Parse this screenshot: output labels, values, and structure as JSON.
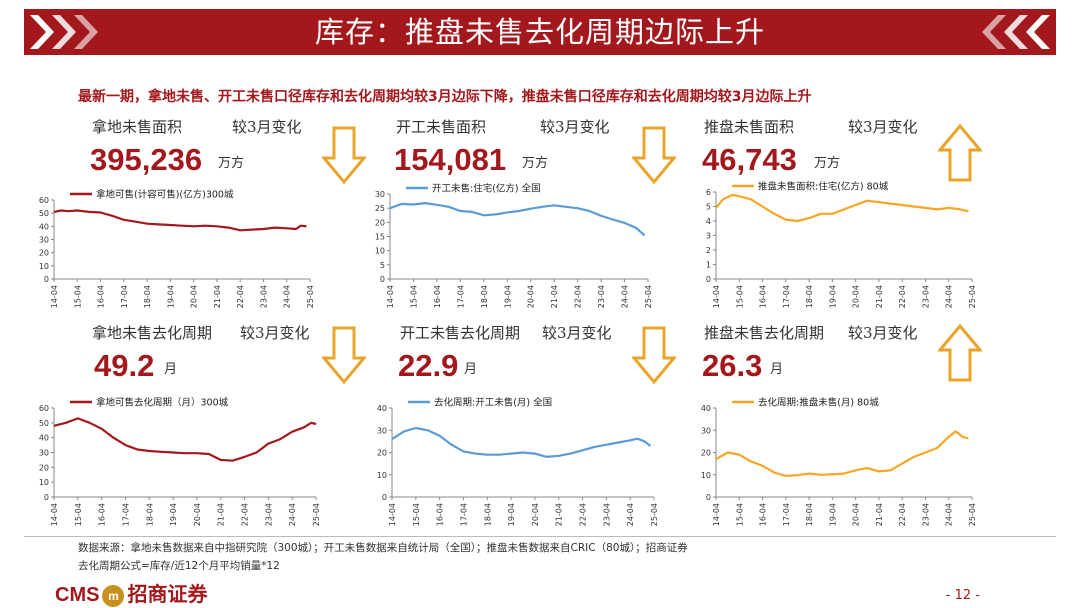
{
  "title": "库存：推盘未售去化周期边际上升",
  "headline": "最新一期，拿地未售、开工未售口径库存和去化周期均较3月边际下降，推盘未售口径库存和去化周期均较3月边际上升",
  "colors": {
    "red": "#A3181D",
    "gold": "#E8A52A",
    "blue": "#5B9BD5",
    "orange": "#F5A623"
  },
  "panels": [
    {
      "label": "拿地未售面积",
      "change_label": "较3月变化",
      "value": "395,236",
      "unit": "万方",
      "arrow": "down"
    },
    {
      "label": "开工未售面积",
      "change_label": "较3月变化",
      "value": "154,081",
      "unit": "万方",
      "arrow": "down"
    },
    {
      "label": "推盘未售面积",
      "change_label": "较3月变化",
      "value": "46,743",
      "unit": "万方",
      "arrow": "up"
    },
    {
      "label": "拿地未售去化周期",
      "change_label": "较3月变化",
      "value": "49.2",
      "unit": "月",
      "arrow": "down"
    },
    {
      "label": "开工未售去化周期",
      "change_label": "较3月变化",
      "value": "22.9",
      "unit": "月",
      "arrow": "down"
    },
    {
      "label": "推盘未售去化周期",
      "change_label": "较3月变化",
      "value": "26.3",
      "unit": "月",
      "arrow": "up"
    }
  ],
  "chart_data": [
    {
      "type": "line",
      "legend": "拿地可售(计容可售)(亿方)300城",
      "color": "#A3181D",
      "x_ticks": [
        "14-04",
        "15-04",
        "16-04",
        "17-04",
        "18-04",
        "19-04",
        "20-04",
        "21-04",
        "22-04",
        "23-04",
        "24-04",
        "25-04"
      ],
      "ylim": [
        0,
        60
      ],
      "y_ticks": [
        0,
        10,
        20,
        30,
        40,
        50,
        60
      ],
      "points": [
        [
          0,
          51
        ],
        [
          0.3,
          52
        ],
        [
          0.6,
          51.5
        ],
        [
          1,
          52
        ],
        [
          1.5,
          51
        ],
        [
          2,
          50.5
        ],
        [
          2.5,
          48
        ],
        [
          3,
          45
        ],
        [
          3.5,
          43.5
        ],
        [
          4,
          42
        ],
        [
          4.5,
          41.5
        ],
        [
          5,
          41
        ],
        [
          5.5,
          40.5
        ],
        [
          6,
          40
        ],
        [
          6.5,
          40.5
        ],
        [
          7,
          40
        ],
        [
          7.5,
          39
        ],
        [
          8,
          37
        ],
        [
          8.5,
          37.5
        ],
        [
          9,
          38
        ],
        [
          9.5,
          39
        ],
        [
          10,
          38.5
        ],
        [
          10.4,
          38
        ],
        [
          10.6,
          40.5
        ],
        [
          10.85,
          40
        ]
      ]
    },
    {
      "type": "line",
      "legend": "开工未售:住宅(亿方) 全国",
      "color": "#5B9BD5",
      "x_ticks": [
        "14-04",
        "15-04",
        "16-04",
        "17-04",
        "18-04",
        "19-04",
        "20-04",
        "21-04",
        "22-04",
        "23-04",
        "24-04",
        "25-04"
      ],
      "ylim": [
        0,
        30
      ],
      "y_ticks": [
        0,
        5,
        10,
        15,
        20,
        25,
        30
      ],
      "points": [
        [
          0,
          25
        ],
        [
          0.5,
          26.5
        ],
        [
          1,
          26.3
        ],
        [
          1.5,
          26.8
        ],
        [
          2,
          26.2
        ],
        [
          2.5,
          25.5
        ],
        [
          3,
          24
        ],
        [
          3.5,
          23.7
        ],
        [
          4,
          22.5
        ],
        [
          4.5,
          22.8
        ],
        [
          5,
          23.5
        ],
        [
          5.5,
          24
        ],
        [
          6,
          24.8
        ],
        [
          6.5,
          25.5
        ],
        [
          7,
          26
        ],
        [
          7.5,
          25.5
        ],
        [
          8,
          25
        ],
        [
          8.5,
          24
        ],
        [
          9,
          22.3
        ],
        [
          9.5,
          21
        ],
        [
          10,
          19.8
        ],
        [
          10.5,
          18
        ],
        [
          10.85,
          15.4
        ]
      ]
    },
    {
      "type": "line",
      "legend": "推盘未售面积:住宅(亿方) 80城",
      "color": "#F5A623",
      "x_ticks": [
        "14-04",
        "15-04",
        "16-04",
        "17-04",
        "18-04",
        "19-04",
        "20-04",
        "21-04",
        "22-04",
        "23-04",
        "24-04",
        "25-04"
      ],
      "ylim": [
        0,
        6
      ],
      "y_ticks": [
        0,
        1,
        2,
        3,
        4,
        5,
        6
      ],
      "points": [
        [
          0,
          4.9
        ],
        [
          0.3,
          5.5
        ],
        [
          0.7,
          5.8
        ],
        [
          1,
          5.7
        ],
        [
          1.5,
          5.5
        ],
        [
          2,
          5.0
        ],
        [
          2.5,
          4.5
        ],
        [
          3,
          4.1
        ],
        [
          3.5,
          4.0
        ],
        [
          4,
          4.2
        ],
        [
          4.5,
          4.5
        ],
        [
          5,
          4.5
        ],
        [
          5.5,
          4.8
        ],
        [
          6,
          5.1
        ],
        [
          6.5,
          5.4
        ],
        [
          7,
          5.3
        ],
        [
          7.5,
          5.2
        ],
        [
          8,
          5.1
        ],
        [
          8.5,
          5.0
        ],
        [
          9,
          4.9
        ],
        [
          9.5,
          4.8
        ],
        [
          10,
          4.9
        ],
        [
          10.5,
          4.8
        ],
        [
          10.85,
          4.67
        ]
      ]
    },
    {
      "type": "line",
      "legend": "拿地可售去化周期（月）300城",
      "color": "#A3181D",
      "x_ticks": [
        "14-04",
        "15-04",
        "16-04",
        "17-04",
        "18-04",
        "19-04",
        "20-04",
        "21-04",
        "22-04",
        "23-04",
        "24-04",
        "25-04"
      ],
      "ylim": [
        0,
        60
      ],
      "y_ticks": [
        0,
        10,
        20,
        30,
        40,
        50,
        60
      ],
      "points": [
        [
          0,
          48
        ],
        [
          0.5,
          50
        ],
        [
          1,
          53
        ],
        [
          1.5,
          50
        ],
        [
          2,
          46
        ],
        [
          2.5,
          40
        ],
        [
          3,
          35
        ],
        [
          3.5,
          32
        ],
        [
          4,
          31
        ],
        [
          4.5,
          30.5
        ],
        [
          5,
          30
        ],
        [
          5.5,
          29.5
        ],
        [
          6,
          29.5
        ],
        [
          6.5,
          29
        ],
        [
          7,
          25
        ],
        [
          7.5,
          24.5
        ],
        [
          8,
          27
        ],
        [
          8.5,
          30
        ],
        [
          9,
          36
        ],
        [
          9.5,
          39
        ],
        [
          10,
          44
        ],
        [
          10.5,
          47
        ],
        [
          10.8,
          50
        ],
        [
          11,
          49.2
        ]
      ]
    },
    {
      "type": "line",
      "legend": "去化周期:开工未售(月) 全国",
      "color": "#5B9BD5",
      "x_ticks": [
        "14-04",
        "15-04",
        "16-04",
        "17-04",
        "18-04",
        "19-04",
        "20-04",
        "21-04",
        "22-04",
        "23-04",
        "24-04",
        "25-04"
      ],
      "ylim": [
        0,
        40
      ],
      "y_ticks": [
        0,
        10,
        20,
        30,
        40
      ],
      "points": [
        [
          0,
          26
        ],
        [
          0.5,
          29.5
        ],
        [
          1,
          31
        ],
        [
          1.5,
          30
        ],
        [
          2,
          27.5
        ],
        [
          2.5,
          23.5
        ],
        [
          3,
          20.5
        ],
        [
          3.5,
          19.5
        ],
        [
          4,
          19
        ],
        [
          4.5,
          19
        ],
        [
          5,
          19.5
        ],
        [
          5.5,
          20
        ],
        [
          6,
          19.5
        ],
        [
          6.5,
          18
        ],
        [
          7,
          18.5
        ],
        [
          7.5,
          19.5
        ],
        [
          8,
          21
        ],
        [
          8.5,
          22.5
        ],
        [
          9,
          23.5
        ],
        [
          9.5,
          24.5
        ],
        [
          10,
          25.5
        ],
        [
          10.3,
          26.2
        ],
        [
          10.6,
          25
        ],
        [
          10.85,
          22.9
        ]
      ]
    },
    {
      "type": "line",
      "legend": "去化周期:推盘未售(月) 80城",
      "color": "#F5A623",
      "x_ticks": [
        "14-04",
        "15-04",
        "16-04",
        "17-04",
        "18-04",
        "19-04",
        "20-04",
        "21-04",
        "22-04",
        "23-04",
        "24-04",
        "25-04"
      ],
      "ylim": [
        0,
        40
      ],
      "y_ticks": [
        0,
        10,
        20,
        30,
        40
      ],
      "points": [
        [
          0,
          17
        ],
        [
          0.5,
          20
        ],
        [
          1,
          19
        ],
        [
          1.5,
          16
        ],
        [
          2,
          14
        ],
        [
          2.5,
          11
        ],
        [
          3,
          9.5
        ],
        [
          3.5,
          9.8
        ],
        [
          4,
          10.5
        ],
        [
          4.5,
          10
        ],
        [
          5,
          10.2
        ],
        [
          5.5,
          10.5
        ],
        [
          6,
          12
        ],
        [
          6.5,
          13
        ],
        [
          7,
          11.5
        ],
        [
          7.5,
          12
        ],
        [
          8,
          15
        ],
        [
          8.5,
          18
        ],
        [
          9,
          20
        ],
        [
          9.5,
          22
        ],
        [
          10,
          27
        ],
        [
          10.3,
          29.5
        ],
        [
          10.6,
          27
        ],
        [
          10.85,
          26.3
        ]
      ]
    }
  ],
  "footnote1": "数据来源：拿地未售数据来自中指研究院（300城）；开工未售数据来自统计局（全国）；推盘未售数据来自CRIC（80城）；招商证券",
  "footnote2": "去化周期公式=库存/近12个月平均销量*12",
  "logo": {
    "latin": "CMS",
    "circle": "m",
    "chinese": "招商证券"
  },
  "page_number": "- 12 -"
}
